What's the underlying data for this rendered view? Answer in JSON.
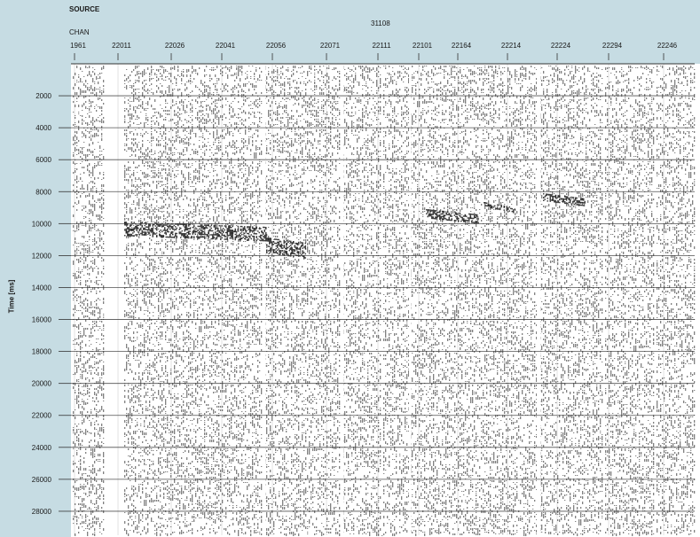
{
  "header": {
    "source_label": "SOURCE",
    "cable_label": "CHAN",
    "line_label": "31108"
  },
  "chart_data": {
    "type": "heatmap",
    "title": "",
    "xlabel": "",
    "ylabel": "Time [ms]",
    "x_tick_labels": [
      "1961",
      "22011",
      "22026",
      "22041",
      "22056",
      "22071",
      "22111",
      "22101",
      "22164",
      "22214",
      "22224",
      "22294",
      "22246"
    ],
    "y_ticks": [
      2000,
      4000,
      6000,
      8000,
      10000,
      12000,
      14000,
      16000,
      18000,
      20000,
      22000,
      24000,
      26000,
      28000
    ],
    "ylim": [
      0,
      29500
    ],
    "grid": true,
    "colors": {
      "header": "#c6dce3",
      "trace": "#1a1a1a",
      "grid": "#333333"
    }
  }
}
